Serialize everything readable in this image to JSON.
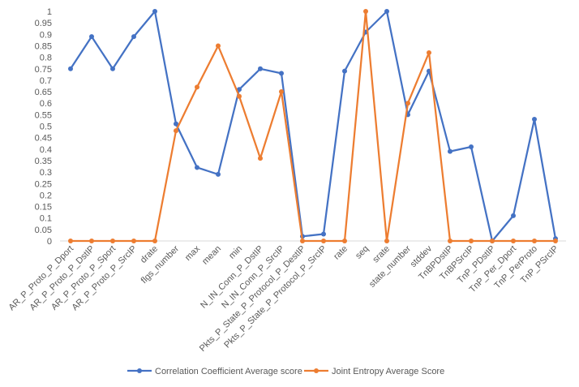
{
  "chart_data": {
    "type": "line",
    "title": "",
    "xlabel": "",
    "ylabel": "",
    "ylim": [
      0,
      1
    ],
    "y_ticks": [
      "0",
      "0.05",
      "0.1",
      "0.15",
      "0.2",
      "0.25",
      "0.3",
      "0.35",
      "0.4",
      "0.45",
      "0.5",
      "0.55",
      "0.6",
      "0.65",
      "0.7",
      "0.75",
      "0.8",
      "0.85",
      "0.9",
      "0.95",
      "1"
    ],
    "grid": false,
    "legend_position": "bottom",
    "categories": [
      "AR_P_Proto_P_Dport",
      "AR_P_Proto_P_DstIP",
      "AR_P_Proto_P_Sport",
      "AR_P_Proto_P_SrcIP",
      "drate",
      "flgs_number",
      "max",
      "mean",
      "min",
      "N_IN_Conn_P_DstIP",
      "N_IN_Conn_P_SrcIP",
      "Pkts_P_State_P_Protocol_P_DestIP",
      "Pkts_P_State_P_Protocol_P_SrcIP",
      "rate",
      "seq",
      "srate",
      "state_number",
      "stddev",
      "TnBPDstIP",
      "TnBPSrcIP",
      "TnP_PDstIP",
      "TnP_Per_Dport",
      "TnP_PerProto",
      "TnP_PSrcIP"
    ],
    "series": [
      {
        "name": "Correlation Coefficient Average score",
        "color": "#4472c4",
        "values": [
          0.75,
          0.89,
          0.75,
          0.89,
          1.0,
          0.51,
          0.32,
          0.29,
          0.66,
          0.75,
          0.73,
          0.02,
          0.03,
          0.74,
          0.91,
          1.0,
          0.55,
          0.74,
          0.39,
          0.41,
          0.0,
          0.11,
          0.53,
          0.01
        ]
      },
      {
        "name": "Joint Entropy Average Score",
        "color": "#ed7d31",
        "values": [
          0,
          0,
          0,
          0,
          0,
          0.48,
          0.67,
          0.85,
          0.63,
          0.36,
          0.65,
          0,
          0,
          0,
          1.0,
          0,
          0.6,
          0.82,
          0,
          0,
          0,
          0,
          0,
          0
        ]
      }
    ]
  }
}
